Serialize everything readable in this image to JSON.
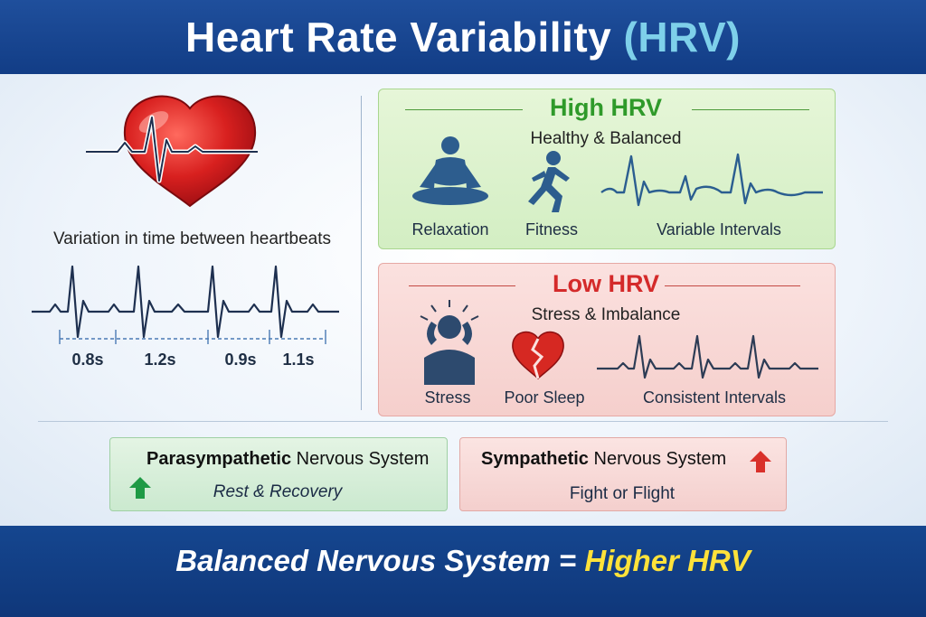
{
  "title": {
    "main": "Heart Rate Variability",
    "accent": "(HRV)"
  },
  "left": {
    "caption": "Variation in time between heartbeats",
    "intervals": [
      "0.8s",
      "1.2s",
      "0.9s",
      "1.1s"
    ]
  },
  "high_hrv": {
    "title": "High HRV",
    "subtitle": "Healthy & Balanced",
    "items": [
      "Relaxation",
      "Fitness",
      "Variable Intervals"
    ],
    "icons": [
      "meditation-icon",
      "running-icon",
      "ecg-wave-icon"
    ],
    "color": "#2f9a2a"
  },
  "low_hrv": {
    "title": "Low HRV",
    "subtitle": "Stress & Imbalance",
    "items": [
      "Stress",
      "Poor Sleep",
      "Consistent Intervals"
    ],
    "icons": [
      "stressed-person-icon",
      "broken-heart-icon",
      "ecg-wave-icon"
    ],
    "color": "#d42a2a"
  },
  "parasympathetic": {
    "name": "Parasympathetic",
    "suffix": "Nervous System",
    "role": "Rest & Recovery",
    "icon": "arrow-up-icon",
    "color": "#1f9a45"
  },
  "sympathetic": {
    "name": "Sympathetic",
    "suffix": "Nervous System",
    "role": "Fight or Flight",
    "icon": "arrow-up-icon",
    "color": "#d9302a"
  },
  "footer": {
    "text": "Balanced Nervous System =",
    "highlight": "Higher HRV"
  },
  "colors": {
    "header": "#1a4a95",
    "accent": "#7ed0ea",
    "highlight": "#ffe23a"
  }
}
